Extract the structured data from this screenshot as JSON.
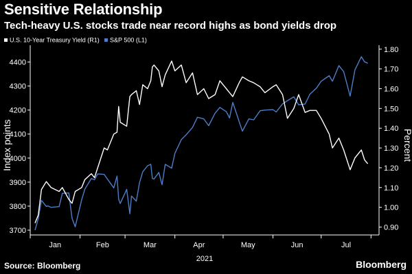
{
  "header": {
    "title": "Sensitive Relationship",
    "subtitle": "Tech-heavy U.S. stocks trade near record highs as bond yields drop"
  },
  "footer": {
    "source": "Source: Bloomberg",
    "brand": "Bloomberg"
  },
  "colors": {
    "background": "#000000",
    "treasury": "#ffffff",
    "sp500": "#4d7ec8",
    "text": "#ffffff"
  },
  "chart_data": {
    "type": "line",
    "xlabel": "2021",
    "ylabel_left": "Index points",
    "ylabel_right": "Percent",
    "x_ticks": [
      "Jan",
      "Feb",
      "Mar",
      "Apr",
      "May",
      "Jun",
      "Jul"
    ],
    "x_year": "2021",
    "ylim_left": [
      3680,
      4470
    ],
    "yticks_left": [
      "3700",
      "3800",
      "3900",
      "4000",
      "4100",
      "4200",
      "4300",
      "4400"
    ],
    "ylim_right": [
      0.86,
      1.82
    ],
    "yticks_right": [
      "0.90",
      "1.00",
      "1.10",
      "1.20",
      "1.30",
      "1.40",
      "1.50",
      "1.60",
      "1.70",
      "1.80"
    ],
    "legend_position": "top-left",
    "series": [
      {
        "name": "U.S. 10-Year Treasury Yield (R1)",
        "axis": "right",
        "x": [
          "2021-01-04",
          "2021-01-06",
          "2021-01-08",
          "2021-01-11",
          "2021-01-12",
          "2021-01-14",
          "2021-01-19",
          "2021-01-21",
          "2021-01-25",
          "2021-01-27",
          "2021-01-29",
          "2021-02-02",
          "2021-02-04",
          "2021-02-08",
          "2021-02-10",
          "2021-02-12",
          "2021-02-16",
          "2021-02-18",
          "2021-02-22",
          "2021-02-24",
          "2021-02-25",
          "2021-02-26",
          "2021-03-02",
          "2021-03-04",
          "2021-03-05",
          "2021-03-08",
          "2021-03-10",
          "2021-03-12",
          "2021-03-15",
          "2021-03-17",
          "2021-03-18",
          "2021-03-19",
          "2021-03-22",
          "2021-03-24",
          "2021-03-26",
          "2021-03-30",
          "2021-04-01",
          "2021-04-05",
          "2021-04-08",
          "2021-04-12",
          "2021-04-15",
          "2021-04-19",
          "2021-04-22",
          "2021-04-26",
          "2021-04-29",
          "2021-05-03",
          "2021-05-05",
          "2021-05-07",
          "2021-05-11",
          "2021-05-13",
          "2021-05-17",
          "2021-05-20",
          "2021-05-24",
          "2021-05-27",
          "2021-06-01",
          "2021-06-03",
          "2021-06-07",
          "2021-06-10",
          "2021-06-14",
          "2021-06-17",
          "2021-06-21",
          "2021-06-24",
          "2021-06-28",
          "2021-07-01",
          "2021-07-06",
          "2021-07-08",
          "2021-07-12",
          "2021-07-15",
          "2021-07-19",
          "2021-07-22",
          "2021-07-26",
          "2021-07-28",
          "2021-07-30"
        ],
        "values": [
          0.92,
          0.96,
          1.09,
          1.13,
          1.12,
          1.1,
          1.08,
          1.1,
          1.04,
          1.02,
          1.08,
          1.1,
          1.14,
          1.17,
          1.15,
          1.2,
          1.3,
          1.29,
          1.37,
          1.38,
          1.51,
          1.43,
          1.41,
          1.56,
          1.57,
          1.59,
          1.52,
          1.62,
          1.6,
          1.64,
          1.71,
          1.72,
          1.69,
          1.61,
          1.67,
          1.74,
          1.69,
          1.72,
          1.63,
          1.68,
          1.57,
          1.6,
          1.55,
          1.57,
          1.64,
          1.6,
          1.58,
          1.56,
          1.63,
          1.66,
          1.64,
          1.63,
          1.61,
          1.58,
          1.61,
          1.62,
          1.57,
          1.45,
          1.5,
          1.57,
          1.48,
          1.49,
          1.49,
          1.45,
          1.37,
          1.3,
          1.35,
          1.29,
          1.19,
          1.25,
          1.29,
          1.24,
          1.22
        ]
      },
      {
        "name": "S&P 500 (L1)",
        "axis": "left",
        "x": [
          "2021-01-04",
          "2021-01-06",
          "2021-01-08",
          "2021-01-11",
          "2021-01-12",
          "2021-01-14",
          "2021-01-19",
          "2021-01-21",
          "2021-01-25",
          "2021-01-27",
          "2021-01-29",
          "2021-02-02",
          "2021-02-04",
          "2021-02-08",
          "2021-02-10",
          "2021-02-12",
          "2021-02-16",
          "2021-02-18",
          "2021-02-22",
          "2021-02-24",
          "2021-02-25",
          "2021-02-26",
          "2021-03-02",
          "2021-03-04",
          "2021-03-05",
          "2021-03-08",
          "2021-03-10",
          "2021-03-12",
          "2021-03-15",
          "2021-03-17",
          "2021-03-18",
          "2021-03-19",
          "2021-03-22",
          "2021-03-24",
          "2021-03-26",
          "2021-03-30",
          "2021-04-01",
          "2021-04-05",
          "2021-04-08",
          "2021-04-12",
          "2021-04-15",
          "2021-04-19",
          "2021-04-22",
          "2021-04-26",
          "2021-04-29",
          "2021-05-03",
          "2021-05-05",
          "2021-05-07",
          "2021-05-11",
          "2021-05-13",
          "2021-05-17",
          "2021-05-20",
          "2021-05-24",
          "2021-05-27",
          "2021-06-01",
          "2021-06-03",
          "2021-06-07",
          "2021-06-10",
          "2021-06-14",
          "2021-06-17",
          "2021-06-21",
          "2021-06-24",
          "2021-06-28",
          "2021-07-01",
          "2021-07-06",
          "2021-07-08",
          "2021-07-12",
          "2021-07-15",
          "2021-07-19",
          "2021-07-22",
          "2021-07-26",
          "2021-07-28",
          "2021-07-30"
        ],
        "values": [
          3700,
          3748,
          3824,
          3799,
          3801,
          3795,
          3798,
          3853,
          3855,
          3750,
          3714,
          3826,
          3871,
          3915,
          3910,
          3934,
          3932,
          3913,
          3876,
          3925,
          3829,
          3811,
          3870,
          3768,
          3842,
          3821,
          3898,
          3943,
          3968,
          3974,
          3915,
          3913,
          3940,
          3889,
          3974,
          3958,
          4020,
          4077,
          4097,
          4128,
          4170,
          4163,
          4135,
          4187,
          4211,
          4193,
          4167,
          4232,
          4152,
          4112,
          4163,
          4159,
          4197,
          4200,
          4202,
          4192,
          4226,
          4239,
          4255,
          4222,
          4225,
          4266,
          4291,
          4320,
          4343,
          4320,
          4385,
          4360,
          4258,
          4367,
          4422,
          4401,
          4395
        ]
      }
    ]
  }
}
